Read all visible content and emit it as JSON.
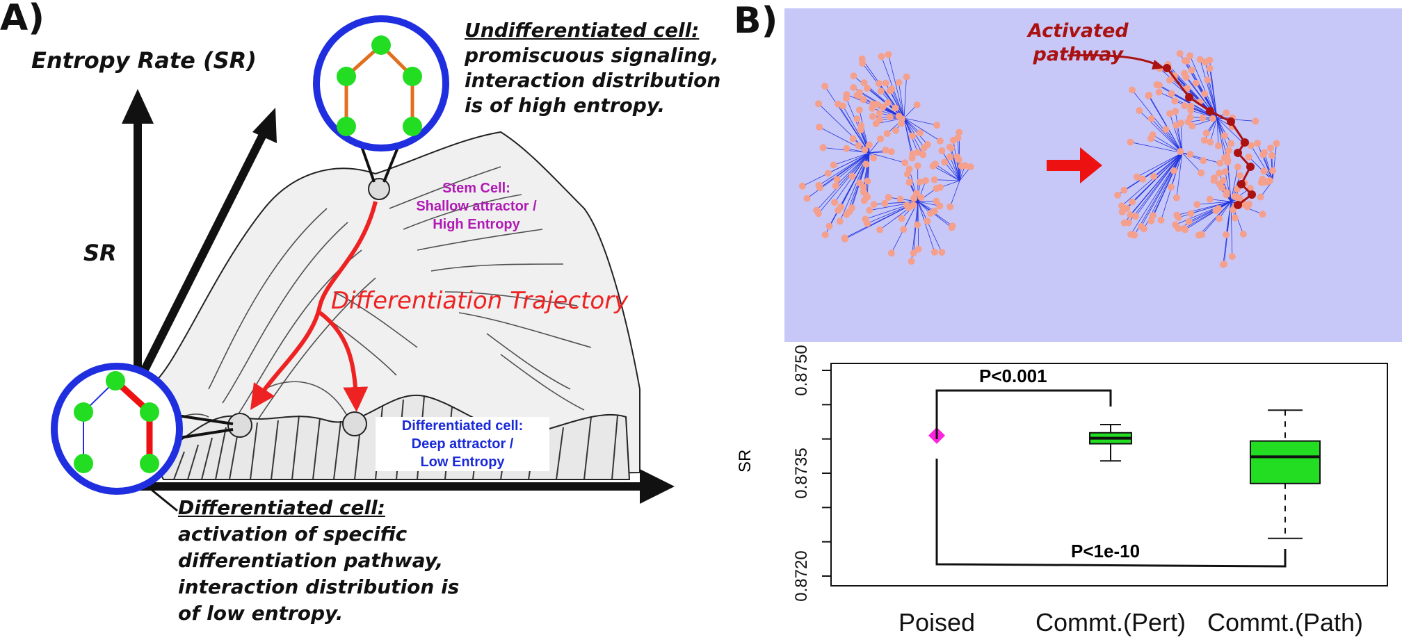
{
  "panelA": {
    "label": "A)",
    "axis_title": "Entropy Rate (SR)",
    "sr_label": "SR",
    "undiff": {
      "title": "Undifferentiated cell:",
      "lines": [
        "promiscuous signaling,",
        "interaction distribution",
        "is of high entropy."
      ]
    },
    "stem": {
      "lines": [
        "Stem Cell:",
        "Shallow attractor /",
        "High Entropy"
      ],
      "color": "#b01ab4"
    },
    "trajectory": {
      "text": "Differentiation Trajectory",
      "color": "#ee2222"
    },
    "diffcell_small": {
      "lines": [
        "Differentiated cell:",
        "Deep attractor /",
        "Low Entropy"
      ],
      "color": "#1a2ad8"
    },
    "diff": {
      "title": "Differentiated cell:",
      "lines": [
        "activation of specific",
        "differentiation pathway,",
        "interaction distribution is",
        "of low entropy."
      ]
    },
    "colors": {
      "circle": "#1f2fe0",
      "node": "#22dd22",
      "edge_orange": "#e07020",
      "edge_red": "#ee1111"
    }
  },
  "panelB": {
    "label": "B)",
    "network": {
      "activated": [
        "Activated",
        "pathway"
      ],
      "bg": "#c8c8f8",
      "node": "#f4a08c",
      "edge": "#2233dd",
      "path": "#aa1111"
    },
    "chart_data": {
      "type": "box",
      "ylabel": "SR",
      "ylim": [
        0.872,
        0.875
      ],
      "yticks": [
        "0.8720",
        "0.8735",
        "0.8750"
      ],
      "categories": [
        "Poised",
        "Commt.(Pert)",
        "Commt.(Path)"
      ],
      "poised": {
        "value": 0.87405,
        "color": "#ff22dd"
      },
      "boxes": [
        {
          "category": "Commt.(Pert)",
          "min": 0.87368,
          "q1": 0.87393,
          "median": 0.87401,
          "q3": 0.87409,
          "max": 0.87421,
          "fill": "#22dd22"
        },
        {
          "category": "Commt.(Path)",
          "min": 0.87255,
          "q1": 0.87335,
          "median": 0.87374,
          "q3": 0.87397,
          "max": 0.87442,
          "fill": "#22dd22"
        }
      ],
      "annotations": [
        "P<0.001",
        "P<1e-10"
      ]
    }
  }
}
